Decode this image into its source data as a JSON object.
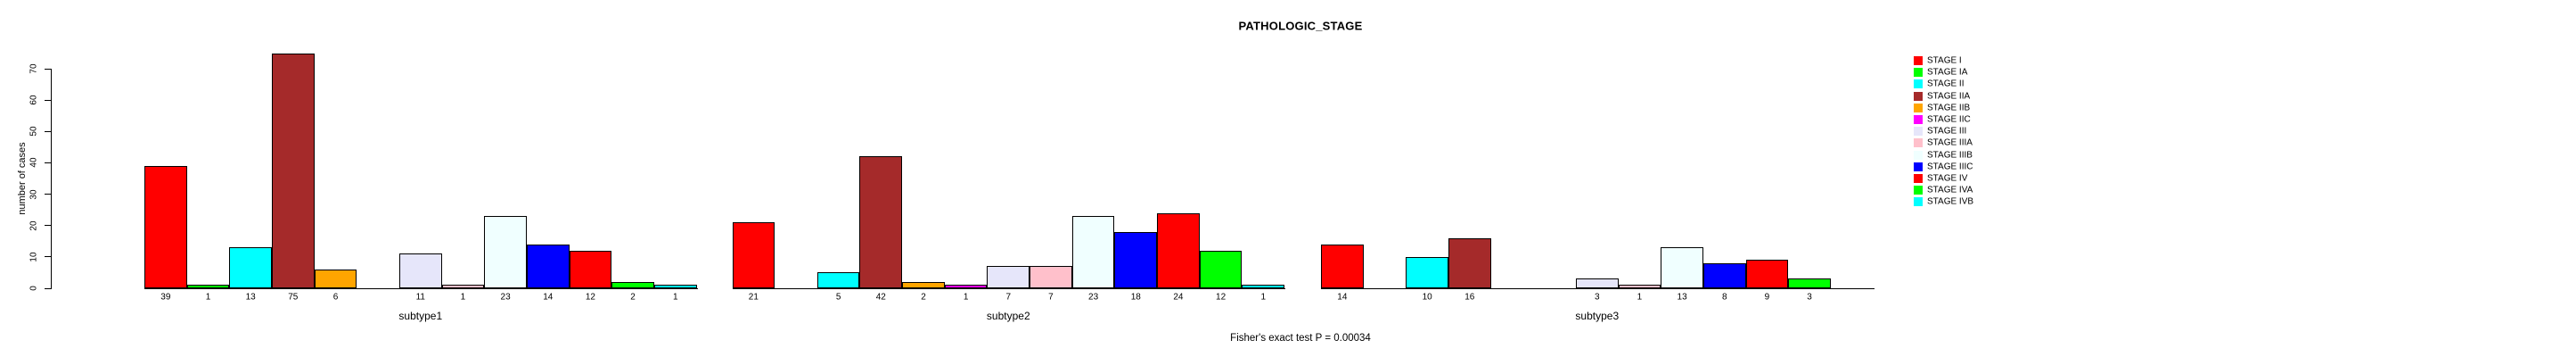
{
  "chart_data": {
    "type": "bar",
    "title": "PATHOLOGIC_STAGE",
    "ylabel": "number of cases",
    "ylim": [
      0,
      75
    ],
    "yticks": [
      0,
      10,
      20,
      30,
      40,
      50,
      60,
      70
    ],
    "grid": false,
    "legend_position": "right",
    "categories": [
      "STAGE I",
      "STAGE IA",
      "STAGE II",
      "STAGE IIA",
      "STAGE IIB",
      "STAGE IIC",
      "STAGE III",
      "STAGE IIIA",
      "STAGE IIIB",
      "STAGE IIIC",
      "STAGE IV",
      "STAGE IVA",
      "STAGE IVB"
    ],
    "palette": [
      "#FF0000",
      "#00FF00",
      "#00FFFF",
      "#A52A2A",
      "#FFA500",
      "#FF00FF",
      "#E6E6FA",
      "#FFC0CB",
      "#F0FFFF",
      "#0000FF",
      "#FF0000",
      "#00FF00",
      "#00FFFF"
    ],
    "groups": [
      {
        "label": "subtype1",
        "values": [
          39,
          1,
          13,
          75,
          6,
          null,
          11,
          1,
          23,
          14,
          12,
          2,
          1
        ]
      },
      {
        "label": "subtype2",
        "values": [
          21,
          null,
          5,
          42,
          2,
          1,
          7,
          7,
          23,
          18,
          24,
          12,
          1
        ]
      },
      {
        "label": "subtype3",
        "values": [
          14,
          null,
          10,
          16,
          null,
          null,
          3,
          1,
          13,
          8,
          9,
          3,
          null
        ]
      }
    ],
    "annotation": "Fisher's exact test P = 0.00034"
  },
  "colors": {
    "axis": "#000000",
    "background": "#FFFFFF",
    "text": "#000000"
  }
}
